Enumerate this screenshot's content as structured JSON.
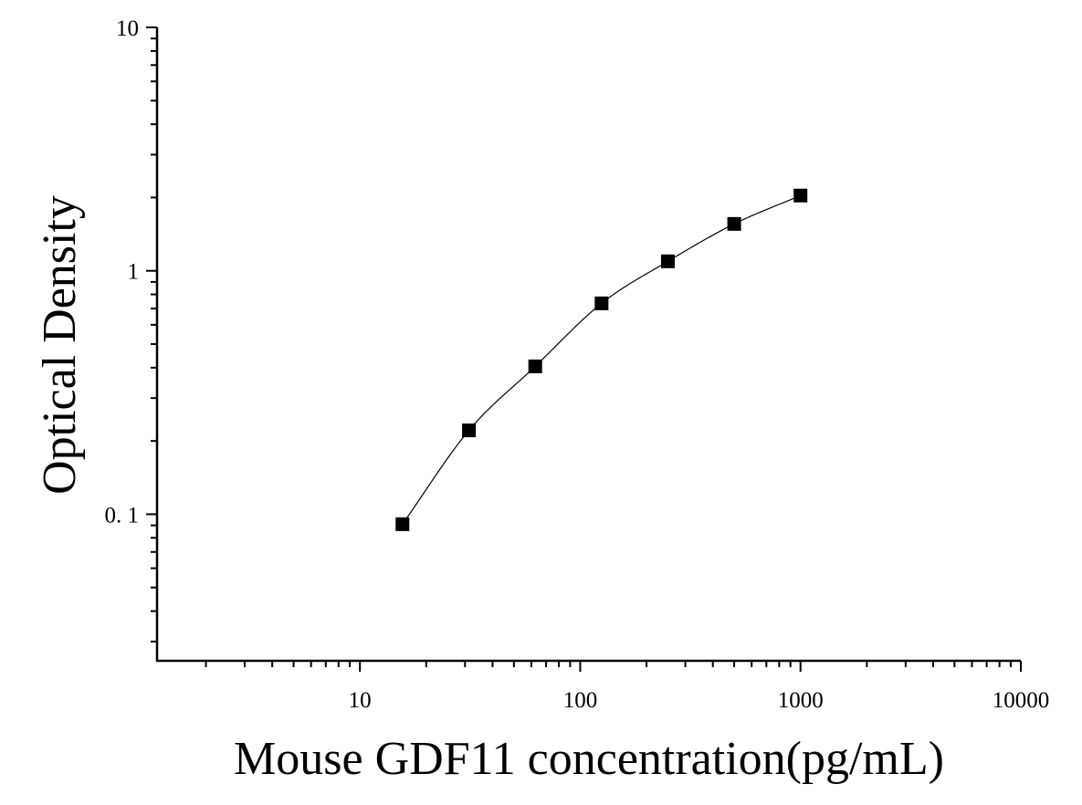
{
  "chart_data": {
    "type": "scatter",
    "xlabel": "Mouse GDF11 concentration(pg/mL)",
    "ylabel": "Optical Density",
    "xscale": "log",
    "yscale": "log",
    "xlim": [
      1.2,
      10000
    ],
    "ylim": [
      0.025,
      10
    ],
    "x_ticks": [
      {
        "value": 10,
        "label": "10"
      },
      {
        "value": 100,
        "label": "100"
      },
      {
        "value": 1000,
        "label": "1000"
      },
      {
        "value": 10000,
        "label": "10000"
      }
    ],
    "y_ticks": [
      {
        "value": 0.1,
        "label": "0. 1"
      },
      {
        "value": 1,
        "label": "1"
      },
      {
        "value": 10,
        "label": "10"
      }
    ],
    "grid": false,
    "legend": false,
    "marker": "square",
    "marker_color": "#000000",
    "fit_line": true,
    "fit_line_color": "#000000",
    "series": [
      {
        "x": [
          15.6,
          31.25,
          62.5,
          125,
          250,
          500,
          1000
        ],
        "y": [
          0.091,
          0.221,
          0.405,
          0.735,
          1.094,
          1.558,
          2.038
        ]
      }
    ]
  }
}
